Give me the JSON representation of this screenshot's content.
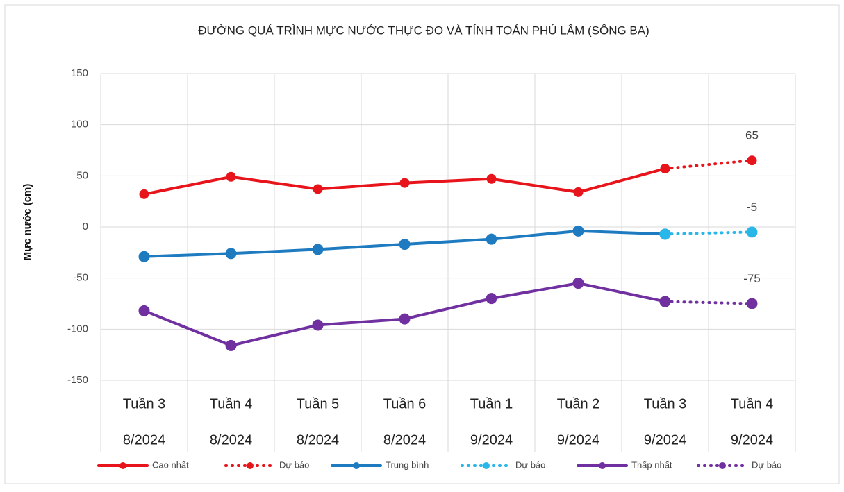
{
  "chart_data": {
    "type": "line",
    "title": "ĐƯỜNG QUÁ TRÌNH MỰC NƯỚC THỰC ĐO VÀ TÍNH TOÁN PHÚ LÂM (SÔNG BA)",
    "y_label": "Mực nước (cm)",
    "categories": [
      [
        "Tuần 3",
        "8/2024"
      ],
      [
        "Tuần 4",
        "8/2024"
      ],
      [
        "Tuần 5",
        "8/2024"
      ],
      [
        "Tuần 6",
        "8/2024"
      ],
      [
        "Tuần 1",
        "9/2024"
      ],
      [
        "Tuần 2",
        "9/2024"
      ],
      [
        "Tuần 3",
        "9/2024"
      ],
      [
        "Tuần 4",
        "9/2024"
      ]
    ],
    "series": [
      {
        "name": "Cao nhất",
        "color": "#e8141b",
        "line_style": "solid",
        "values": [
          32,
          49,
          37,
          43,
          47,
          34,
          57,
          null
        ]
      },
      {
        "name": "Dự báo",
        "color": "#e8141b",
        "line_style": "dotted",
        "values": [
          null,
          null,
          null,
          null,
          null,
          null,
          57,
          65
        ]
      },
      {
        "name": "Trung bình",
        "color": "#1f7bc0",
        "line_style": "solid",
        "values": [
          -29,
          -26,
          -22,
          -17,
          -12,
          -4,
          -7,
          null
        ]
      },
      {
        "name": "Dự báo",
        "color": "#29b6e8",
        "line_style": "dotted",
        "values": [
          null,
          null,
          null,
          null,
          null,
          null,
          -7,
          -5
        ]
      },
      {
        "name": "Thấp nhất",
        "color": "#7030a0",
        "line_style": "solid",
        "values": [
          -82,
          -116,
          -96,
          -90,
          -70,
          -55,
          -73,
          null
        ]
      },
      {
        "name": "Dự báo",
        "color": "#7030a0",
        "line_style": "dotted",
        "values": [
          null,
          null,
          null,
          null,
          null,
          null,
          -73,
          -75
        ]
      }
    ],
    "ylim": [
      -150,
      150
    ],
    "yticks": [
      -150,
      -100,
      -50,
      0,
      50,
      100,
      150
    ],
    "grid": true
  }
}
